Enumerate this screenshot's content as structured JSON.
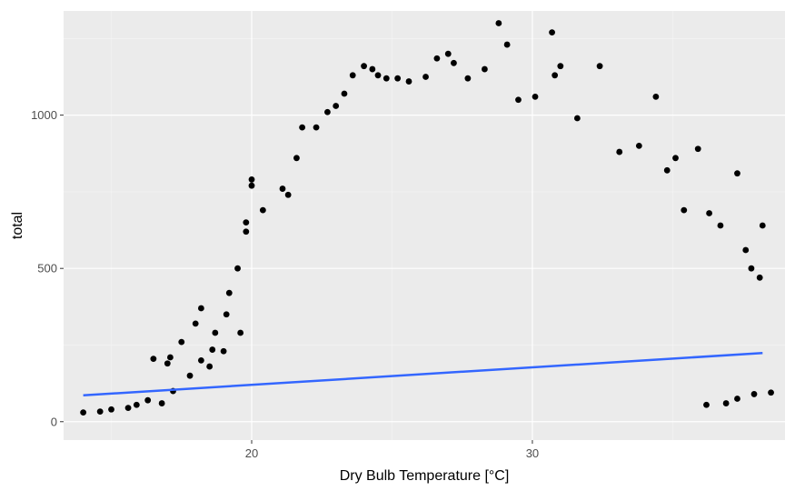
{
  "chart_data": {
    "type": "scatter",
    "title": "",
    "xlabel": "Dry Bulb Temperature [°C]",
    "ylabel": "total",
    "xlim": [
      13.3,
      39.0
    ],
    "ylim": [
      -60,
      1340
    ],
    "x_ticks": [
      20,
      30
    ],
    "x_tick_labels": [
      "20",
      "30"
    ],
    "x_minor_ticks": [
      15,
      25,
      35
    ],
    "y_ticks": [
      0,
      500,
      1000
    ],
    "y_tick_labels": [
      "0",
      "500",
      "1000"
    ],
    "y_minor_ticks": [
      250,
      750,
      1250
    ],
    "grid": true,
    "colors": {
      "panel_background": "#ebebeb",
      "grid_major": "#ffffff",
      "grid_minor": "#f5f5f5",
      "points": "#000000",
      "trend": "#3366ff"
    },
    "trend_line": {
      "method": "linear",
      "x": [
        14.0,
        38.2
      ],
      "y": [
        86,
        224
      ]
    },
    "series": [
      {
        "values": [
          [
            14.0,
            30
          ],
          [
            14.6,
            33
          ],
          [
            15.0,
            40
          ],
          [
            15.6,
            45
          ],
          [
            15.9,
            55
          ],
          [
            16.3,
            70
          ],
          [
            16.5,
            205
          ],
          [
            16.8,
            60
          ],
          [
            17.0,
            190
          ],
          [
            17.1,
            210
          ],
          [
            17.2,
            100
          ],
          [
            17.5,
            260
          ],
          [
            17.8,
            150
          ],
          [
            18.0,
            320
          ],
          [
            18.2,
            370
          ],
          [
            18.2,
            200
          ],
          [
            18.5,
            180
          ],
          [
            18.6,
            235
          ],
          [
            18.7,
            290
          ],
          [
            19.0,
            230
          ],
          [
            19.1,
            350
          ],
          [
            19.2,
            420
          ],
          [
            19.5,
            500
          ],
          [
            19.6,
            290
          ],
          [
            19.8,
            620
          ],
          [
            19.8,
            650
          ],
          [
            20.0,
            790
          ],
          [
            20.0,
            770
          ],
          [
            20.4,
            690
          ],
          [
            21.1,
            760
          ],
          [
            21.3,
            740
          ],
          [
            21.6,
            860
          ],
          [
            21.8,
            960
          ],
          [
            22.3,
            960
          ],
          [
            22.7,
            1010
          ],
          [
            23.0,
            1030
          ],
          [
            23.3,
            1070
          ],
          [
            23.6,
            1130
          ],
          [
            24.0,
            1160
          ],
          [
            24.3,
            1150
          ],
          [
            24.5,
            1130
          ],
          [
            24.8,
            1120
          ],
          [
            25.2,
            1120
          ],
          [
            25.6,
            1110
          ],
          [
            26.2,
            1125
          ],
          [
            26.6,
            1185
          ],
          [
            27.0,
            1200
          ],
          [
            27.2,
            1170
          ],
          [
            27.7,
            1120
          ],
          [
            28.3,
            1150
          ],
          [
            28.8,
            1300
          ],
          [
            29.1,
            1230
          ],
          [
            29.5,
            1050
          ],
          [
            30.1,
            1060
          ],
          [
            30.7,
            1270
          ],
          [
            30.8,
            1130
          ],
          [
            31.0,
            1160
          ],
          [
            31.6,
            990
          ],
          [
            32.4,
            1160
          ],
          [
            33.1,
            880
          ],
          [
            33.8,
            900
          ],
          [
            34.4,
            1060
          ],
          [
            34.8,
            820
          ],
          [
            35.1,
            860
          ],
          [
            35.4,
            690
          ],
          [
            35.9,
            890
          ],
          [
            36.3,
            680
          ],
          [
            36.7,
            640
          ],
          [
            37.3,
            810
          ],
          [
            37.6,
            560
          ],
          [
            37.8,
            500
          ],
          [
            38.1,
            470
          ],
          [
            38.2,
            640
          ],
          [
            38.5,
            95
          ],
          [
            37.9,
            90
          ],
          [
            37.3,
            75
          ],
          [
            36.9,
            60
          ],
          [
            36.2,
            55
          ]
        ]
      }
    ]
  }
}
